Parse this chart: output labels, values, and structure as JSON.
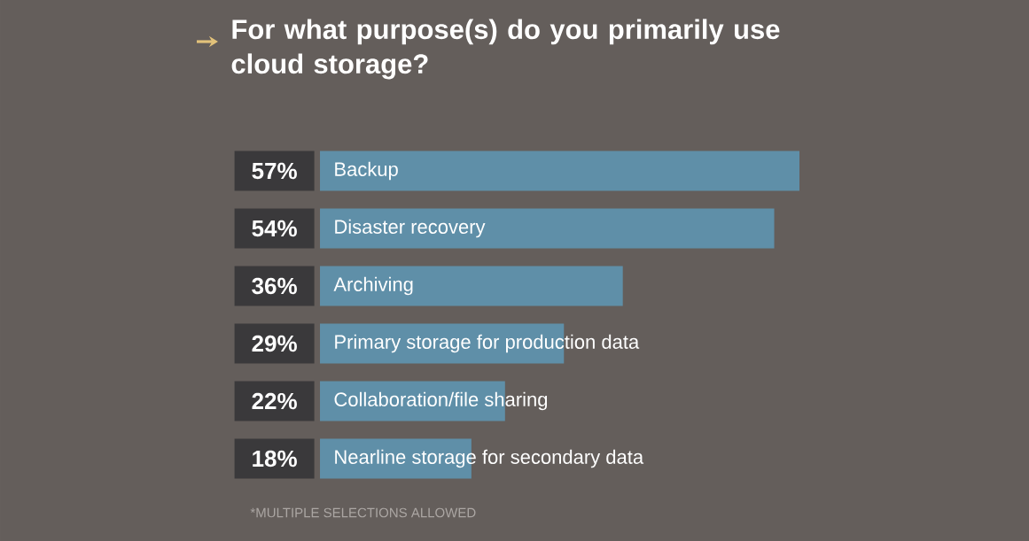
{
  "chart_data": {
    "type": "bar",
    "orientation": "horizontal",
    "title": "For what purpose(s) do you primarily use cloud storage?",
    "categories": [
      "Backup",
      "Disaster recovery",
      "Archiving",
      "Primary storage for production data",
      "Collaboration/file sharing",
      "Nearline storage for secondary data"
    ],
    "values": [
      57,
      54,
      36,
      29,
      22,
      18
    ],
    "value_labels": [
      "57%",
      "54%",
      "36%",
      "29%",
      "22%",
      "18%"
    ],
    "color": "#5f8fa8",
    "annotations": [
      "*MULTIPLE SELECTIONS ALLOWED"
    ]
  }
}
